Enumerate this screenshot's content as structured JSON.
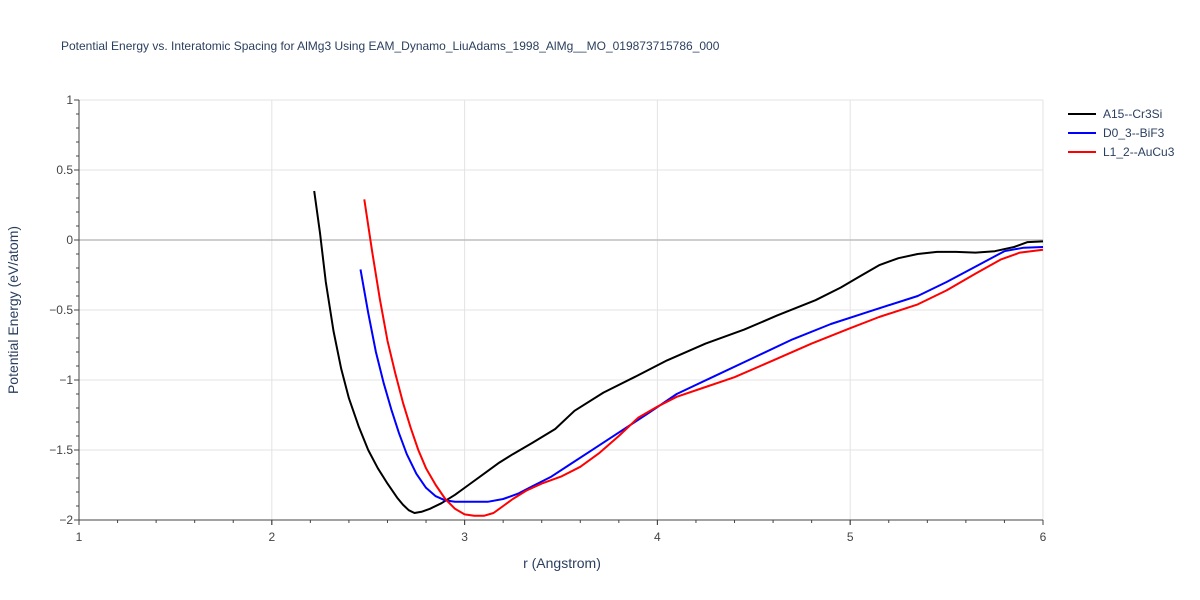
{
  "chart_data": {
    "type": "line",
    "title": "Potential Energy vs. Interatomic Spacing for AlMg3 Using EAM_Dynamo_LiuAdams_1998_AlMg__MO_019873715786_000",
    "xlabel": "r (Angstrom)",
    "ylabel": "Potential Energy (eV/atom)",
    "xlim": [
      1,
      6
    ],
    "ylim": [
      -2,
      1
    ],
    "xticks": [
      "1",
      "2",
      "3",
      "4",
      "5",
      "6"
    ],
    "yticks": [
      "1",
      "0.5",
      "0",
      "−0.5",
      "−1",
      "−1.5",
      "−2"
    ],
    "grid": true,
    "legend_position": "top-right",
    "series": [
      {
        "name": "A15--Cr3Si",
        "color": "#000000",
        "x": [
          2.22,
          2.25,
          2.28,
          2.32,
          2.36,
          2.4,
          2.45,
          2.5,
          2.55,
          2.6,
          2.65,
          2.68,
          2.71,
          2.74,
          2.78,
          2.82,
          2.88,
          2.95,
          3.02,
          3.1,
          3.18,
          3.25,
          3.35,
          3.47,
          3.57,
          3.72,
          3.88,
          4.05,
          4.25,
          4.45,
          4.62,
          4.82,
          4.95,
          5.05,
          5.15,
          5.25,
          5.35,
          5.45,
          5.55,
          5.65,
          5.75,
          5.85,
          5.92,
          6.0
        ],
        "y": [
          0.35,
          0.05,
          -0.3,
          -0.65,
          -0.92,
          -1.13,
          -1.33,
          -1.5,
          -1.63,
          -1.74,
          -1.84,
          -1.89,
          -1.93,
          -1.95,
          -1.94,
          -1.92,
          -1.88,
          -1.82,
          -1.75,
          -1.67,
          -1.59,
          -1.53,
          -1.45,
          -1.35,
          -1.22,
          -1.09,
          -0.98,
          -0.86,
          -0.74,
          -0.64,
          -0.54,
          -0.43,
          -0.34,
          -0.26,
          -0.18,
          -0.13,
          -0.1,
          -0.085,
          -0.085,
          -0.09,
          -0.08,
          -0.05,
          -0.015,
          -0.01
        ]
      },
      {
        "name": "D0_3--BiF3",
        "color": "#0000ff",
        "x": [
          2.46,
          2.5,
          2.54,
          2.58,
          2.62,
          2.66,
          2.7,
          2.75,
          2.8,
          2.85,
          2.9,
          2.95,
          3.0,
          3.05,
          3.12,
          3.2,
          3.28,
          3.35,
          3.45,
          3.55,
          3.65,
          3.75,
          3.85,
          3.95,
          4.1,
          4.3,
          4.5,
          4.7,
          4.9,
          5.1,
          5.35,
          5.5,
          5.65,
          5.8,
          5.9,
          6.0
        ],
        "y": [
          -0.21,
          -0.52,
          -0.8,
          -1.02,
          -1.21,
          -1.38,
          -1.53,
          -1.67,
          -1.77,
          -1.83,
          -1.86,
          -1.87,
          -1.87,
          -1.87,
          -1.87,
          -1.85,
          -1.81,
          -1.76,
          -1.69,
          -1.6,
          -1.51,
          -1.42,
          -1.33,
          -1.24,
          -1.1,
          -0.97,
          -0.84,
          -0.71,
          -0.6,
          -0.51,
          -0.4,
          -0.3,
          -0.19,
          -0.08,
          -0.055,
          -0.05
        ]
      },
      {
        "name": "L1_2--AuCu3",
        "color": "#ff0000",
        "x": [
          2.48,
          2.52,
          2.56,
          2.6,
          2.64,
          2.68,
          2.72,
          2.76,
          2.8,
          2.85,
          2.9,
          2.95,
          3.0,
          3.05,
          3.1,
          3.15,
          3.2,
          3.25,
          3.32,
          3.4,
          3.5,
          3.6,
          3.7,
          3.8,
          3.9,
          4.0,
          4.1,
          4.25,
          4.4,
          4.6,
          4.8,
          5.0,
          5.15,
          5.35,
          5.5,
          5.65,
          5.78,
          5.88,
          6.0
        ],
        "y": [
          0.29,
          -0.08,
          -0.42,
          -0.72,
          -0.95,
          -1.16,
          -1.34,
          -1.5,
          -1.63,
          -1.75,
          -1.85,
          -1.92,
          -1.96,
          -1.97,
          -1.97,
          -1.95,
          -1.9,
          -1.85,
          -1.79,
          -1.74,
          -1.69,
          -1.62,
          -1.52,
          -1.4,
          -1.27,
          -1.19,
          -1.12,
          -1.05,
          -0.98,
          -0.86,
          -0.74,
          -0.63,
          -0.55,
          -0.46,
          -0.36,
          -0.24,
          -0.14,
          -0.09,
          -0.07
        ]
      }
    ]
  }
}
